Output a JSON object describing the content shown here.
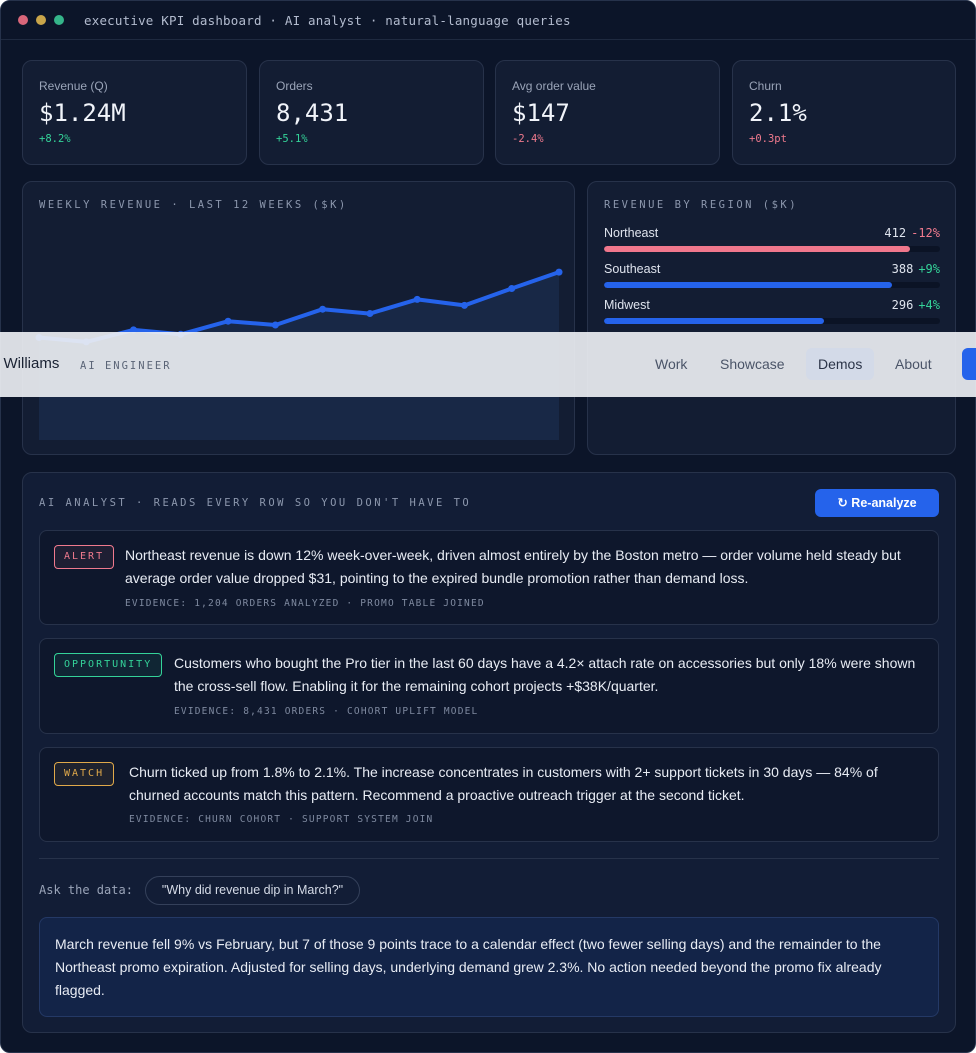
{
  "window": {
    "title": "executive KPI dashboard · AI analyst · natural-language queries",
    "traffic_colors": [
      "#d9667a",
      "#c9a54a",
      "#35b58a"
    ]
  },
  "kpis": [
    {
      "label": "Revenue (Q)",
      "value": "$1.24M",
      "delta": "+8.2%",
      "trend": "up"
    },
    {
      "label": "Orders",
      "value": "8,431",
      "delta": "+5.1%",
      "trend": "up"
    },
    {
      "label": "Avg order value",
      "value": "$147",
      "delta": "-2.4%",
      "trend": "down"
    },
    {
      "label": "Churn",
      "value": "2.1%",
      "delta": "+0.3pt",
      "trend": "bad"
    }
  ],
  "colors": {
    "up": "#34d399",
    "down": "#f07a8e",
    "accent": "#2563eb",
    "alert_bar": "#f0778c"
  },
  "chart_data": {
    "type": "area",
    "title": "WEEKLY REVENUE · LAST 12 WEEKS ($K)",
    "x": [
      1,
      2,
      3,
      4,
      5,
      6,
      7,
      8,
      9,
      10,
      11,
      12
    ],
    "values": [
      188,
      180,
      202,
      194,
      218,
      211,
      240,
      232,
      258,
      247,
      278,
      308
    ],
    "ylim": [
      0,
      400
    ],
    "grid": false,
    "legend": "none"
  },
  "regions": {
    "title": "REVENUE BY REGION ($K)",
    "max": 412,
    "items": [
      {
        "name": "Northeast",
        "value": 412,
        "change": "-12%",
        "trend": "down"
      },
      {
        "name": "Southeast",
        "value": 388,
        "change": "+9%",
        "trend": "up"
      },
      {
        "name": "Midwest",
        "value": 296,
        "change": "+4%",
        "trend": "up"
      }
    ]
  },
  "navbar": {
    "brand": "u Williams",
    "role": "AI ENGINEER",
    "links": [
      {
        "label": "Work",
        "active": false
      },
      {
        "label": "Showcase",
        "active": false
      },
      {
        "label": "Demos",
        "active": true
      },
      {
        "label": "About",
        "active": false
      }
    ]
  },
  "analyst": {
    "title": "AI ANALYST · READS EVERY ROW SO YOU DON'T HAVE TO",
    "reanalyze_label": "↻ Re-analyze",
    "insights": [
      {
        "tag": "ALERT",
        "tag_color": "#f07a8e",
        "text": "Northeast revenue is down 12% week-over-week, driven almost entirely by the Boston metro — order volume held steady but average order value dropped $31, pointing to the expired bundle promotion rather than demand loss.",
        "evidence": "EVIDENCE: 1,204 ORDERS ANALYZED · PROMO TABLE JOINED"
      },
      {
        "tag": "OPPORTUNITY",
        "tag_color": "#34d399",
        "text": "Customers who bought the Pro tier in the last 60 days have a 4.2× attach rate on accessories but only 18% were shown the cross-sell flow. Enabling it for the remaining cohort projects +$38K/quarter.",
        "evidence": "EVIDENCE: 8,431 ORDERS · COHORT UPLIFT MODEL"
      },
      {
        "tag": "WATCH",
        "tag_color": "#e0a94a",
        "text": "Churn ticked up from 1.8% to 2.1%. The increase concentrates in customers with 2+ support tickets in 30 days — 84% of churned accounts match this pattern. Recommend a proactive outreach trigger at the second ticket.",
        "evidence": "EVIDENCE: CHURN COHORT · SUPPORT SYSTEM JOIN"
      }
    ],
    "ask_label": "Ask the data:",
    "query": "\"Why did revenue dip in March?\"",
    "answer": "March revenue fell 9% vs February, but 7 of those 9 points trace to a calendar effect (two fewer selling days) and the remainder to the Northeast promo expiration. Adjusted for selling days, underlying demand grew 2.3%. No action needed beyond the promo fix already flagged."
  }
}
